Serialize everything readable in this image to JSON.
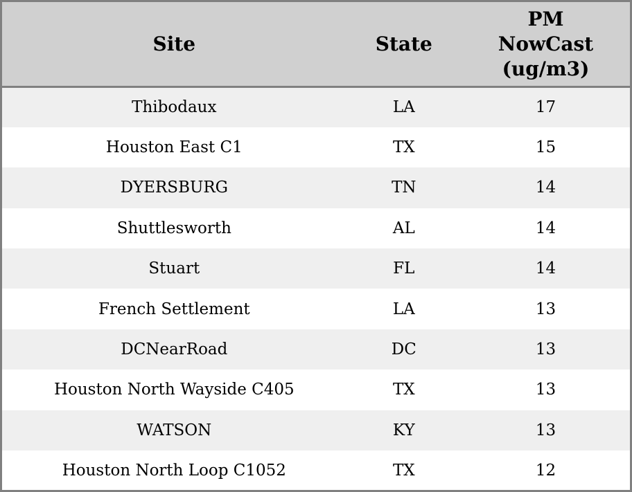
{
  "table": {
    "columns": [
      {
        "key": "site",
        "label": "Site"
      },
      {
        "key": "state",
        "label": "State"
      },
      {
        "key": "pm",
        "label": "PM NowCast (ug/m3)"
      }
    ],
    "rows": [
      {
        "site": "Thibodaux",
        "state": "LA",
        "pm": "17"
      },
      {
        "site": "Houston East C1",
        "state": "TX",
        "pm": "15"
      },
      {
        "site": "DYERSBURG",
        "state": "TN",
        "pm": "14"
      },
      {
        "site": "Shuttlesworth",
        "state": "AL",
        "pm": "14"
      },
      {
        "site": "Stuart",
        "state": "FL",
        "pm": "14"
      },
      {
        "site": "French Settlement",
        "state": "LA",
        "pm": "13"
      },
      {
        "site": "DCNearRoad",
        "state": "DC",
        "pm": "13"
      },
      {
        "site": "Houston North Wayside C405",
        "state": "TX",
        "pm": "13"
      },
      {
        "site": "WATSON",
        "state": "KY",
        "pm": "13"
      },
      {
        "site": "Houston North Loop C1052",
        "state": "TX",
        "pm": "12"
      }
    ]
  },
  "colors": {
    "header_bg": "#d0d0d0",
    "row_alt_bg": "#efefef",
    "row_bg": "#ffffff",
    "border": "#808080",
    "text": "#000000"
  }
}
